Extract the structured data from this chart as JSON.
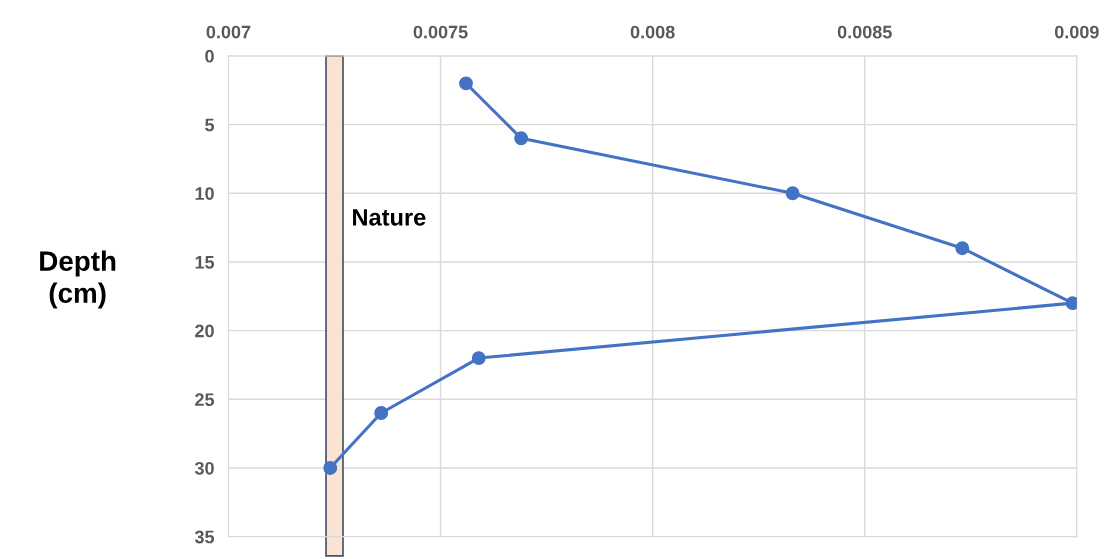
{
  "chart_data": {
    "type": "line",
    "ylabel": "Depth\n(cm)",
    "series": [
      {
        "color": "#4472c4",
        "x": [
          0.00756,
          0.00769,
          0.00833,
          0.00873,
          0.00899,
          0.00759,
          0.00736,
          0.00724
        ],
        "values": [
          2,
          6,
          10,
          14,
          18,
          22,
          26,
          30
        ]
      }
    ],
    "xlim": [
      0.007,
      0.009
    ],
    "xticks": [
      0.007,
      0.0075,
      0.008,
      0.0085,
      0.009
    ],
    "ylim": [
      35,
      0
    ],
    "yticks": [
      0,
      5,
      10,
      15,
      20,
      25,
      30,
      35
    ],
    "bands": [
      {
        "axis": "x",
        "from": 0.00723,
        "to": 0.00727,
        "label": "Nature",
        "color": "#fbe3d2"
      }
    ],
    "grid": true,
    "marker": "circle",
    "line_style": "solid"
  }
}
